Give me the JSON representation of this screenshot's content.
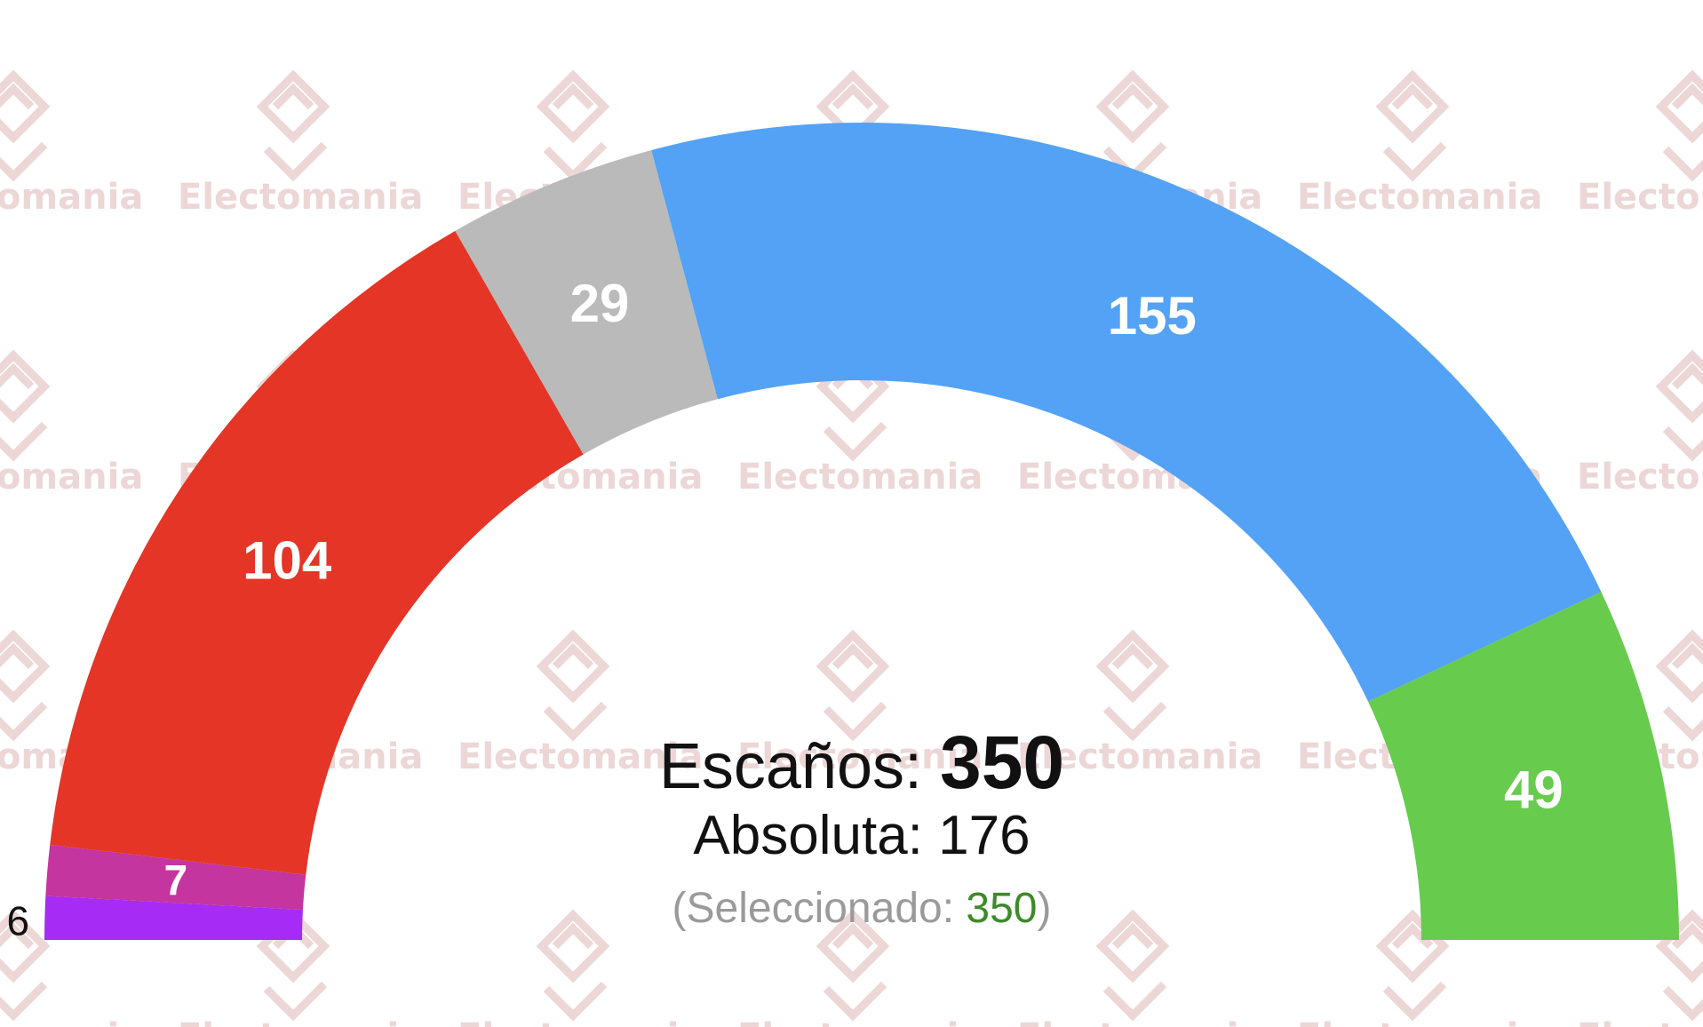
{
  "chart_data": {
    "type": "pie",
    "layout": "parliament-semicircle",
    "total_label": "Escaños:",
    "total_value": "350",
    "majority_label": "Absoluta:",
    "majority_value": "176",
    "selected_prefix": "(Seleccionado: ",
    "selected_value": "350",
    "selected_suffix": ")",
    "watermark": "Electomania",
    "slices": [
      {
        "value": 6,
        "color": "#a52bf5"
      },
      {
        "value": 7,
        "color": "#c4359f"
      },
      {
        "value": 104,
        "color": "#e43526"
      },
      {
        "value": 29,
        "color": "#bababa"
      },
      {
        "value": 155,
        "color": "#53a2f5"
      },
      {
        "value": 49,
        "color": "#67cb4e"
      }
    ]
  }
}
